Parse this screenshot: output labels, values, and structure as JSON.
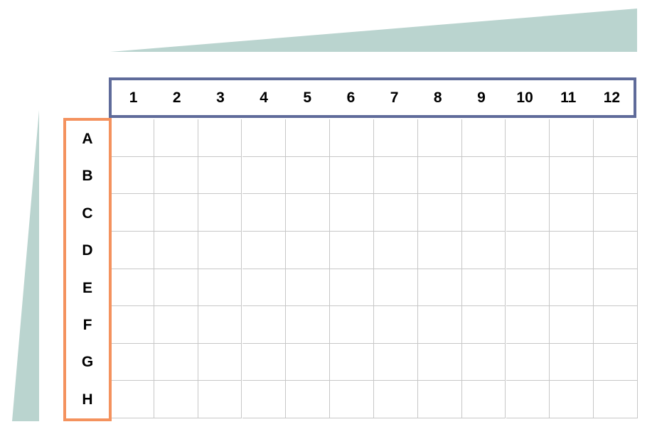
{
  "plate": {
    "columns": [
      "1",
      "2",
      "3",
      "4",
      "5",
      "6",
      "7",
      "8",
      "9",
      "10",
      "11",
      "12"
    ],
    "rows": [
      "A",
      "B",
      "C",
      "D",
      "E",
      "F",
      "G",
      "H"
    ]
  },
  "colors": {
    "gradient_wedge": "#bad4cf",
    "column_header_border": "#5f6b9a",
    "row_header_border": "#f4925e",
    "grid_line": "#c7c7c7"
  }
}
